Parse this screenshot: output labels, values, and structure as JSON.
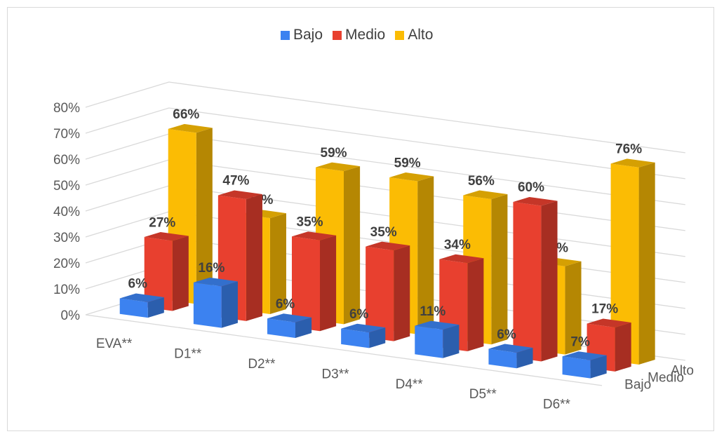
{
  "chart_data": {
    "type": "bar",
    "categories": [
      "EVA**",
      "D1**",
      "D2**",
      "D3**",
      "D4**",
      "D5**",
      "D6**"
    ],
    "series": [
      {
        "name": "Bajo",
        "color": "#3c82f0",
        "values": [
          6,
          16,
          6,
          6,
          11,
          6,
          7
        ]
      },
      {
        "name": "Medio",
        "color": "#e8402f",
        "values": [
          27,
          47,
          35,
          35,
          34,
          60,
          17
        ]
      },
      {
        "name": "Alto",
        "color": "#fbbc04",
        "values": [
          66,
          37,
          59,
          59,
          56,
          34,
          76
        ]
      }
    ],
    "data_labels": {
      "Bajo": [
        "6%",
        "16%",
        "6%",
        "6%",
        "11%",
        "6%",
        "7%"
      ],
      "Medio": [
        "27%",
        "47%",
        "35%",
        "35%",
        "34%",
        "60%",
        "17%"
      ],
      "Alto": [
        "66%",
        "37%",
        "59%",
        "59%",
        "56%",
        "34%",
        "76%"
      ]
    },
    "y_ticks": [
      "0%",
      "10%",
      "20%",
      "30%",
      "40%",
      "50%",
      "60%",
      "70%",
      "80%"
    ],
    "depth_labels": [
      "Alto",
      "Medio",
      "Bajo"
    ],
    "ylim": [
      0,
      80
    ],
    "grid": true,
    "legend_position": "top"
  }
}
